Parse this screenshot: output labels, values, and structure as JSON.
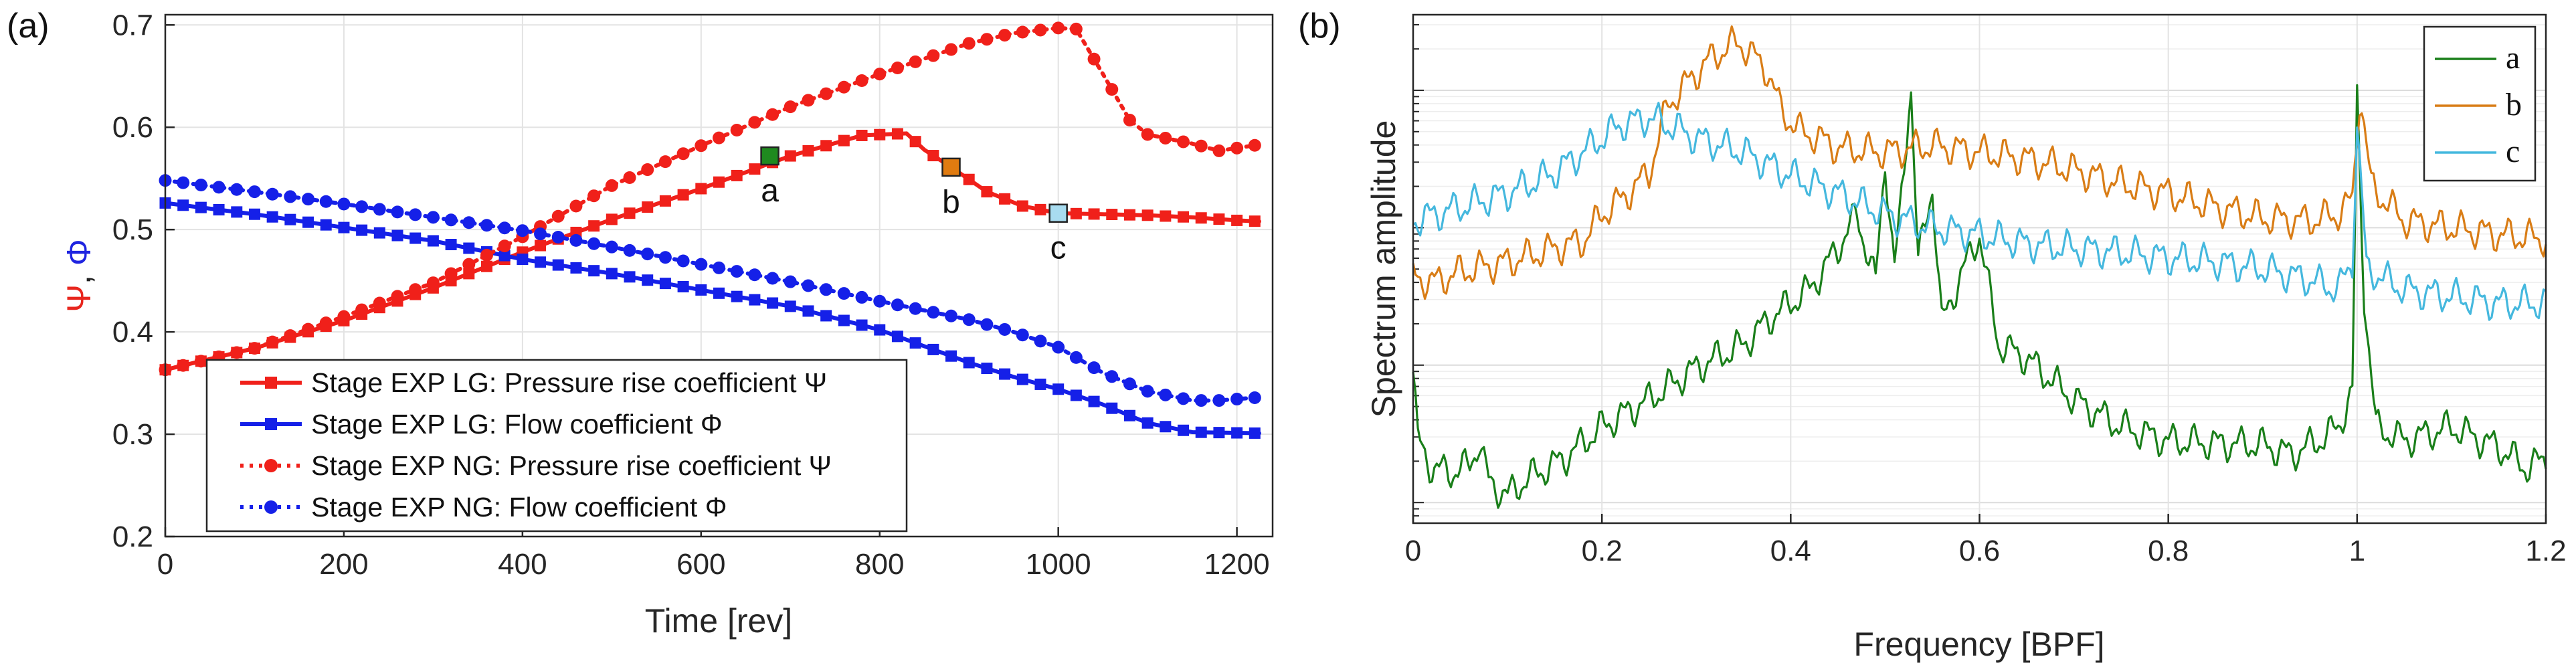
{
  "chart_data": [
    {
      "panel_label": "(a)",
      "type": "line",
      "xlabel": "Time [rev]",
      "ylabel_parts": [
        {
          "text": "Ψ",
          "color": "#e8261e"
        },
        {
          "text": ", ",
          "color": "#222222"
        },
        {
          "text": "Φ",
          "color": "#1f24e0"
        }
      ],
      "xlim": [
        0,
        1240
      ],
      "ylim": [
        0.2,
        0.71
      ],
      "xticks": [
        "0",
        "200",
        "400",
        "600",
        "800",
        "1000",
        "1200"
      ],
      "yticks": [
        "0.2",
        "0.3",
        "0.4",
        "0.5",
        "0.6",
        "0.7"
      ],
      "grid": true,
      "legend_position": "bottom-left",
      "series": [
        {
          "name": "Stage EXP LG: Pressure rise coefficient Ψ",
          "color": "#f0201a",
          "style": "solid",
          "marker": "square",
          "x": [
            0,
            100,
            200,
            300,
            400,
            500,
            600,
            700,
            780,
            830,
            850,
            880,
            920,
            960,
            1000,
            1050,
            1100,
            1150,
            1200,
            1225
          ],
          "y": [
            0.363,
            0.384,
            0.411,
            0.443,
            0.478,
            0.51,
            0.54,
            0.572,
            0.592,
            0.594,
            0.578,
            0.561,
            0.537,
            0.523,
            0.516,
            0.515,
            0.514,
            0.512,
            0.509,
            0.508
          ]
        },
        {
          "name": "Stage EXP LG: Flow coefficient Φ",
          "color": "#1520e8",
          "style": "solid",
          "marker": "square",
          "x": [
            0,
            100,
            200,
            300,
            400,
            500,
            600,
            700,
            800,
            850,
            900,
            950,
            1000,
            1050,
            1100,
            1150,
            1225
          ],
          "y": [
            0.526,
            0.515,
            0.502,
            0.489,
            0.471,
            0.457,
            0.441,
            0.425,
            0.402,
            0.386,
            0.37,
            0.356,
            0.344,
            0.329,
            0.311,
            0.302,
            0.301
          ]
        },
        {
          "name": "Stage EXP NG: Pressure rise coefficient Ψ",
          "color": "#f0201a",
          "style": "dotted",
          "marker": "circle",
          "x": [
            0,
            100,
            200,
            300,
            400,
            500,
            600,
            700,
            800,
            900,
            950,
            1000,
            1020,
            1050,
            1080,
            1100,
            1150,
            1180,
            1225
          ],
          "y": [
            0.363,
            0.384,
            0.415,
            0.448,
            0.493,
            0.543,
            0.582,
            0.62,
            0.652,
            0.682,
            0.692,
            0.697,
            0.696,
            0.652,
            0.607,
            0.593,
            0.584,
            0.577,
            0.583
          ]
        },
        {
          "name": "Stage EXP NG: Flow coefficient Φ",
          "color": "#1520e8",
          "style": "dotted",
          "marker": "circle",
          "x": [
            0,
            100,
            200,
            300,
            400,
            500,
            600,
            700,
            800,
            900,
            950,
            1000,
            1050,
            1100,
            1150,
            1180,
            1225
          ],
          "y": [
            0.548,
            0.537,
            0.525,
            0.512,
            0.499,
            0.483,
            0.466,
            0.449,
            0.43,
            0.412,
            0.4,
            0.385,
            0.36,
            0.342,
            0.333,
            0.333,
            0.336
          ]
        }
      ],
      "annotations": [
        {
          "text": "a",
          "x": 677,
          "y": 0.572,
          "color": "#1f8a1f"
        },
        {
          "text": "b",
          "x": 880,
          "y": 0.561,
          "color": "#e07b10"
        },
        {
          "text": "c",
          "x": 1000,
          "y": 0.516,
          "color": "#a8dcf0"
        }
      ]
    },
    {
      "panel_label": "(b)",
      "type": "line",
      "xlabel": "Frequency [BPF]",
      "ylabel": "Spectrum amplitude",
      "xlim": [
        0,
        1.2
      ],
      "ylim_log": [
        -0.15,
        3.55
      ],
      "yscale": "log",
      "xticks": [
        "0",
        "0.2",
        "0.4",
        "0.6",
        "0.8",
        "1",
        "1.2"
      ],
      "grid": true,
      "legend_position": "top-right",
      "series": [
        {
          "name": "a",
          "color": "#1a7f1a",
          "x": [
            0,
            0.005,
            0.02,
            0.04,
            0.06,
            0.07,
            0.08,
            0.1,
            0.12,
            0.16,
            0.2,
            0.25,
            0.3,
            0.35,
            0.38,
            0.42,
            0.45,
            0.47,
            0.49,
            0.5,
            0.51,
            0.52,
            0.527,
            0.535,
            0.55,
            0.56,
            0.58,
            0.6,
            0.62,
            0.65,
            0.7,
            0.75,
            0.8,
            0.85,
            0.9,
            0.93,
            0.96,
            0.98,
            0.995,
            1.0,
            1.007,
            1.02,
            1.05,
            1.1,
            1.15,
            1.18,
            1.2
          ],
          "y": [
            0.95,
            0.45,
            0.25,
            0.22,
            0.27,
            0.45,
            0.15,
            0.05,
            0.17,
            0.32,
            0.55,
            0.75,
            0.98,
            1.15,
            1.35,
            1.55,
            1.85,
            2.1,
            1.6,
            2.5,
            1.7,
            2.4,
            3.1,
            1.75,
            2.3,
            1.3,
            1.65,
            1.95,
            1.15,
            1.05,
            0.75,
            0.55,
            0.45,
            0.43,
            0.42,
            0.35,
            0.45,
            0.55,
            0.8,
            2.95,
            1.55,
            0.55,
            0.45,
            0.55,
            0.4,
            0.25,
            0.32
          ]
        },
        {
          "name": "b",
          "color": "#d97d16",
          "x": [
            0,
            0.02,
            0.05,
            0.1,
            0.15,
            0.18,
            0.2,
            0.22,
            0.25,
            0.27,
            0.29,
            0.31,
            0.33,
            0.345,
            0.36,
            0.375,
            0.39,
            0.41,
            0.43,
            0.45,
            0.5,
            0.55,
            0.6,
            0.65,
            0.7,
            0.75,
            0.8,
            0.85,
            0.9,
            0.95,
            0.98,
            0.995,
            1.003,
            1.015,
            1.05,
            1.1,
            1.15,
            1.2
          ],
          "y": [
            1.65,
            1.6,
            1.68,
            1.75,
            1.85,
            1.9,
            2.1,
            2.2,
            2.4,
            2.9,
            3.05,
            3.2,
            3.3,
            3.35,
            3.25,
            3.15,
            2.85,
            2.7,
            2.65,
            2.58,
            2.55,
            2.6,
            2.55,
            2.5,
            2.42,
            2.32,
            2.25,
            2.15,
            2.07,
            2.05,
            2.1,
            2.2,
            3.0,
            2.3,
            2.05,
            2.0,
            1.95,
            1.92
          ]
        },
        {
          "name": "c",
          "color": "#45b8de",
          "x": [
            0,
            0.05,
            0.1,
            0.15,
            0.18,
            0.2,
            0.22,
            0.25,
            0.28,
            0.3,
            0.35,
            0.4,
            0.45,
            0.5,
            0.55,
            0.6,
            0.65,
            0.7,
            0.75,
            0.8,
            0.85,
            0.9,
            0.95,
            0.98,
            0.995,
            1.0,
            1.01,
            1.05,
            1.1,
            1.15,
            1.2
          ],
          "y": [
            2.05,
            2.15,
            2.25,
            2.4,
            2.55,
            2.65,
            2.75,
            2.8,
            2.72,
            2.65,
            2.55,
            2.38,
            2.25,
            2.1,
            2.0,
            1.95,
            1.88,
            1.85,
            1.82,
            1.78,
            1.75,
            1.7,
            1.62,
            1.55,
            1.75,
            2.75,
            1.7,
            1.55,
            1.5,
            1.45,
            1.45
          ]
        }
      ]
    }
  ]
}
